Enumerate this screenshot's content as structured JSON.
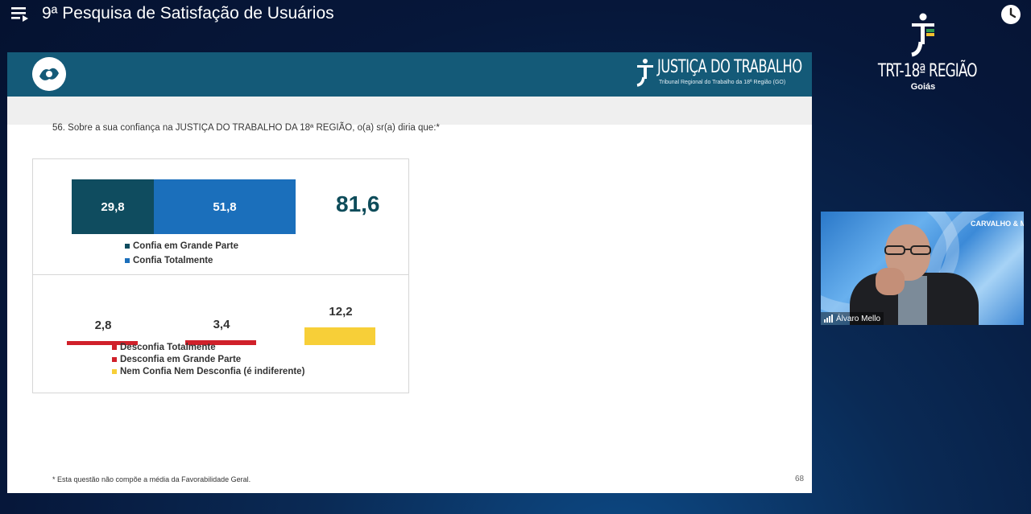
{
  "video": {
    "title": "9ª Pesquisa de Satisfação de Usuários"
  },
  "brand": {
    "trt_name": "TRT-18ª REGIÃO",
    "trt_state": "Goiás"
  },
  "slide": {
    "header_title": "JUSTIÇA DO TRABALHO",
    "header_subtitle": "Tribunal Regional do Trabalho da 18ª Região (GO)",
    "question": "56. Sobre a sua confiança na JUSTIÇA DO TRABALHO DA 18ª REGIÃO, o(a) sr(a) diria que:*",
    "footnote": "* Esta questão não compõe a média da Favorabilidade Geral.",
    "page_number": "68"
  },
  "chart_data": [
    {
      "type": "bar",
      "stacked": true,
      "orientation": "horizontal",
      "series": [
        {
          "name": "Confia em Grande Parte",
          "value": 29.8,
          "label": "29,8",
          "color": "#0f4c5f"
        },
        {
          "name": "Confia Totalmente",
          "value": 51.8,
          "label": "51,8",
          "color": "#1b6fbb"
        }
      ],
      "total": 81.6,
      "total_label": "81,6"
    },
    {
      "type": "bar",
      "series": [
        {
          "name": "Desconfia Totalmente",
          "value": 2.8,
          "label": "2,8",
          "color": "#d0202a"
        },
        {
          "name": "Desconfia em Grande Parte",
          "value": 3.4,
          "label": "3,4",
          "color": "#d0202a"
        },
        {
          "name": "Nem Confia Nem Desconfia (é indiferente)",
          "value": 12.2,
          "label": "12,2",
          "color": "#f7cf38"
        }
      ]
    }
  ],
  "webcam": {
    "participant_name": "Álvaro Mello",
    "brand_text": "CARVALHO & MELLO"
  },
  "colors": {
    "header_teal": "#145a78",
    "trust_dark": "#0f4c5f",
    "trust_blue": "#1b6fbb",
    "distrust_red": "#d0202a",
    "indifferent_yellow": "#f7cf38"
  }
}
